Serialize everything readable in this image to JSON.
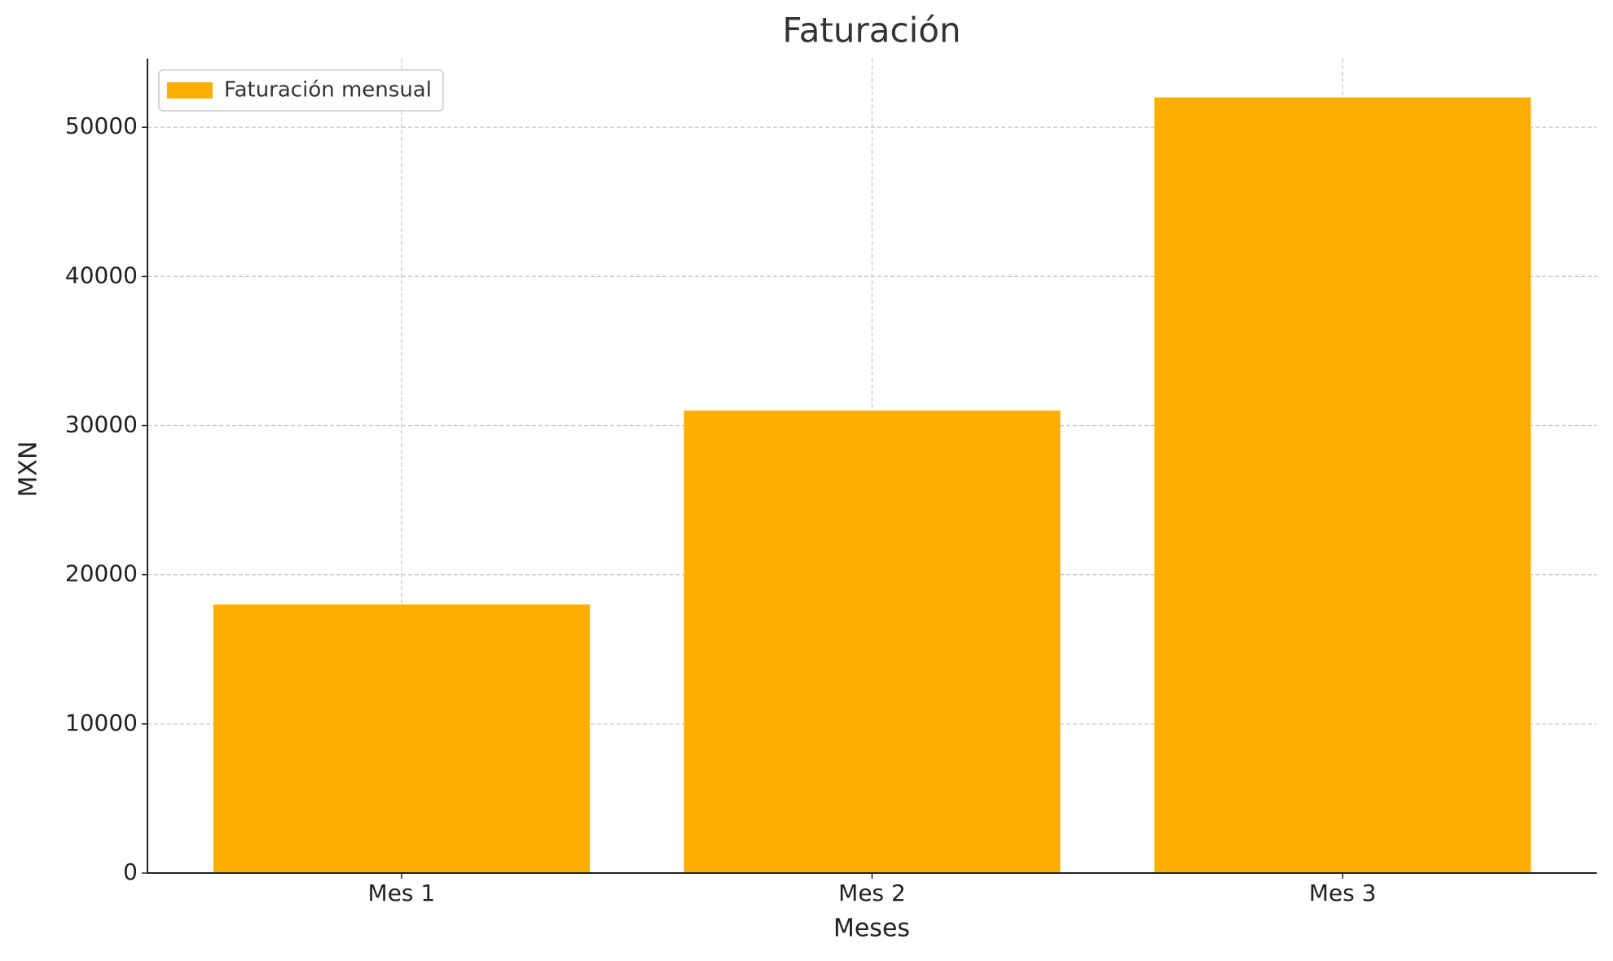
{
  "chart_data": {
    "type": "bar",
    "title": "Faturación",
    "xlabel": "Meses",
    "ylabel": "MXN",
    "categories": [
      "Mes 1",
      "Mes 2",
      "Mes 3"
    ],
    "series": [
      {
        "name": "Faturación mensual",
        "color": "#ffae02",
        "values": [
          18000,
          31000,
          52000
        ]
      }
    ],
    "ylim": [
      0,
      54600
    ],
    "yticks": [
      0,
      10000,
      20000,
      30000,
      40000,
      50000
    ],
    "grid": true,
    "legend": "upper left"
  }
}
